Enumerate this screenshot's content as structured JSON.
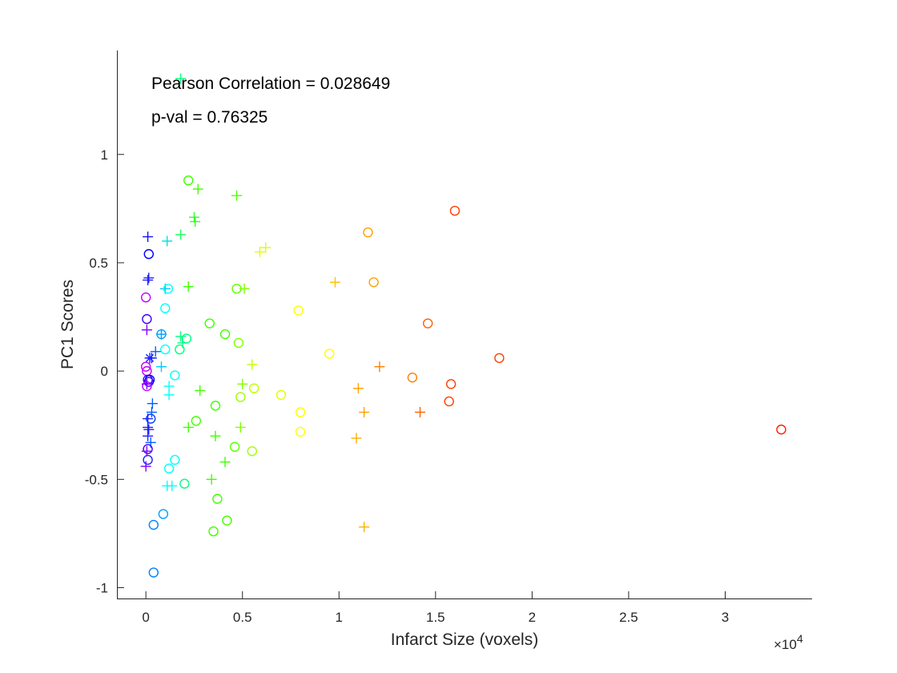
{
  "chart_data": {
    "type": "scatter",
    "xlabel": "Infarct Size (voxels)",
    "ylabel": "PC1 Scores",
    "x_exponent_label": "×10",
    "x_exponent_power": "4",
    "annotations": [
      "Pearson Correlation = 0.028649",
      "p-val = 0.76325"
    ],
    "xlim": [
      -0.15,
      3.45
    ],
    "ylim": [
      -1.05,
      1.48
    ],
    "x_ticks": [
      0,
      0.5,
      1,
      1.5,
      2,
      2.5,
      3
    ],
    "x_tick_labels": [
      "0",
      "0.5",
      "1",
      "1.5",
      "2",
      "2.5",
      "3"
    ],
    "y_ticks": [
      -1,
      -0.5,
      0,
      0.5,
      1
    ],
    "y_tick_labels": [
      "-1",
      "-0.5",
      "0",
      "0.5",
      "1"
    ],
    "grid": false,
    "legend": "none",
    "points": [
      {
        "x": 0.18,
        "y": 1.35,
        "marker": "+",
        "color": "#00ff80"
      },
      {
        "x": 0.22,
        "y": 0.88,
        "marker": "o",
        "color": "#40ff00"
      },
      {
        "x": 0.27,
        "y": 0.84,
        "marker": "+",
        "color": "#40ff00"
      },
      {
        "x": 0.47,
        "y": 0.81,
        "marker": "+",
        "color": "#50ff00"
      },
      {
        "x": 0.25,
        "y": 0.71,
        "marker": "+",
        "color": "#30ff20"
      },
      {
        "x": 0.255,
        "y": 0.69,
        "marker": "+",
        "color": "#30ff20"
      },
      {
        "x": 0.18,
        "y": 0.63,
        "marker": "+",
        "color": "#20ff60"
      },
      {
        "x": 0.11,
        "y": 0.6,
        "marker": "+",
        "color": "#00e0e0"
      },
      {
        "x": 0.01,
        "y": 0.62,
        "marker": "+",
        "color": "#1010ff"
      },
      {
        "x": 0.015,
        "y": 0.54,
        "marker": "o",
        "color": "#0000ff"
      },
      {
        "x": 0.01,
        "y": 0.42,
        "marker": "+",
        "color": "#2020ff"
      },
      {
        "x": 0.015,
        "y": 0.43,
        "marker": "+",
        "color": "#2020ff"
      },
      {
        "x": 0.1,
        "y": 0.38,
        "marker": "+",
        "color": "#00c8ff"
      },
      {
        "x": 0.115,
        "y": 0.38,
        "marker": "o",
        "color": "#00ffff"
      },
      {
        "x": 0.22,
        "y": 0.39,
        "marker": "+",
        "color": "#40ff00"
      },
      {
        "x": 0.47,
        "y": 0.38,
        "marker": "o",
        "color": "#60ff00"
      },
      {
        "x": 0.51,
        "y": 0.38,
        "marker": "+",
        "color": "#80ff00"
      },
      {
        "x": 0.59,
        "y": 0.55,
        "marker": "+",
        "color": "#e0ff00"
      },
      {
        "x": 0.62,
        "y": 0.57,
        "marker": "+",
        "color": "#e0ff00"
      },
      {
        "x": 0.0,
        "y": 0.34,
        "marker": "o",
        "color": "#c000ff"
      },
      {
        "x": 0.005,
        "y": 0.24,
        "marker": "o",
        "color": "#4000ff"
      },
      {
        "x": 0.005,
        "y": 0.19,
        "marker": "+",
        "color": "#8000ff"
      },
      {
        "x": 0.1,
        "y": 0.29,
        "marker": "o",
        "color": "#00ffff"
      },
      {
        "x": 0.08,
        "y": 0.17,
        "marker": "o",
        "color": "#00a0ff"
      },
      {
        "x": 0.08,
        "y": 0.17,
        "marker": "+",
        "color": "#00a0ff"
      },
      {
        "x": 0.18,
        "y": 0.16,
        "marker": "+",
        "color": "#00ff80"
      },
      {
        "x": 0.19,
        "y": 0.13,
        "marker": "+",
        "color": "#00ff80"
      },
      {
        "x": 0.21,
        "y": 0.15,
        "marker": "o",
        "color": "#00ff80"
      },
      {
        "x": 0.175,
        "y": 0.1,
        "marker": "o",
        "color": "#00ff80"
      },
      {
        "x": 0.33,
        "y": 0.22,
        "marker": "o",
        "color": "#40ff00"
      },
      {
        "x": 0.41,
        "y": 0.17,
        "marker": "o",
        "color": "#40ff00"
      },
      {
        "x": 0.48,
        "y": 0.13,
        "marker": "o",
        "color": "#80ff00"
      },
      {
        "x": 0.79,
        "y": 0.28,
        "marker": "o",
        "color": "#ffff00"
      },
      {
        "x": 0.1,
        "y": 0.1,
        "marker": "o",
        "color": "#00ffff"
      },
      {
        "x": 0.03,
        "y": 0.06,
        "marker": "+",
        "color": "#2020ff"
      },
      {
        "x": 0.02,
        "y": 0.06,
        "marker": "*",
        "color": "#2020ff"
      },
      {
        "x": 0.05,
        "y": 0.09,
        "marker": "+",
        "color": "#0060ff"
      },
      {
        "x": 0.08,
        "y": 0.02,
        "marker": "+",
        "color": "#00c8ff"
      },
      {
        "x": 0.15,
        "y": -0.02,
        "marker": "o",
        "color": "#00ffff"
      },
      {
        "x": 0.0,
        "y": 0.02,
        "marker": "o",
        "color": "#c000ff"
      },
      {
        "x": 0.005,
        "y": 0.0,
        "marker": "o",
        "color": "#c000ff"
      },
      {
        "x": 0.01,
        "y": -0.04,
        "marker": "o",
        "color": "#4000ff"
      },
      {
        "x": 0.015,
        "y": -0.05,
        "marker": "o",
        "color": "#4000ff"
      },
      {
        "x": 0.02,
        "y": -0.04,
        "marker": "o",
        "color": "#0000ff"
      },
      {
        "x": 0.005,
        "y": -0.07,
        "marker": "o",
        "color": "#c000ff"
      },
      {
        "x": 0.005,
        "y": -0.06,
        "marker": "+",
        "color": "#8000ff"
      },
      {
        "x": 0.55,
        "y": 0.03,
        "marker": "+",
        "color": "#c0ff00"
      },
      {
        "x": 0.95,
        "y": 0.08,
        "marker": "o",
        "color": "#ffff00"
      },
      {
        "x": 1.21,
        "y": 0.02,
        "marker": "+",
        "color": "#ff8000"
      },
      {
        "x": 1.38,
        "y": -0.03,
        "marker": "o",
        "color": "#ff8000"
      },
      {
        "x": 1.83,
        "y": 0.06,
        "marker": "o",
        "color": "#ff4000"
      },
      {
        "x": 1.58,
        "y": -0.06,
        "marker": "o",
        "color": "#ff4000"
      },
      {
        "x": 1.57,
        "y": -0.14,
        "marker": "o",
        "color": "#ff4000"
      },
      {
        "x": 1.42,
        "y": -0.19,
        "marker": "+",
        "color": "#ff6000"
      },
      {
        "x": 1.1,
        "y": -0.08,
        "marker": "+",
        "color": "#ffa000"
      },
      {
        "x": 1.13,
        "y": -0.19,
        "marker": "+",
        "color": "#ffa000"
      },
      {
        "x": 1.09,
        "y": -0.31,
        "marker": "+",
        "color": "#ffb000"
      },
      {
        "x": 0.12,
        "y": -0.07,
        "marker": "+",
        "color": "#00ffff"
      },
      {
        "x": 0.12,
        "y": -0.11,
        "marker": "+",
        "color": "#00ffff"
      },
      {
        "x": 0.28,
        "y": -0.09,
        "marker": "+",
        "color": "#40ff00"
      },
      {
        "x": 0.5,
        "y": -0.06,
        "marker": "+",
        "color": "#80ff00"
      },
      {
        "x": 0.49,
        "y": -0.12,
        "marker": "o",
        "color": "#a0ff00"
      },
      {
        "x": 0.56,
        "y": -0.08,
        "marker": "o",
        "color": "#c0ff00"
      },
      {
        "x": 0.7,
        "y": -0.11,
        "marker": "o",
        "color": "#e0ff00"
      },
      {
        "x": 0.8,
        "y": -0.19,
        "marker": "o",
        "color": "#ffff00"
      },
      {
        "x": 0.8,
        "y": -0.28,
        "marker": "o",
        "color": "#ffff00"
      },
      {
        "x": 0.36,
        "y": -0.16,
        "marker": "o",
        "color": "#40ff00"
      },
      {
        "x": 0.26,
        "y": -0.23,
        "marker": "o",
        "color": "#40ff00"
      },
      {
        "x": 0.22,
        "y": -0.26,
        "marker": "+",
        "color": "#40ff00"
      },
      {
        "x": 0.36,
        "y": -0.3,
        "marker": "+",
        "color": "#40ff00"
      },
      {
        "x": 0.49,
        "y": -0.26,
        "marker": "+",
        "color": "#80ff00"
      },
      {
        "x": 0.46,
        "y": -0.35,
        "marker": "o",
        "color": "#60ff00"
      },
      {
        "x": 0.55,
        "y": -0.37,
        "marker": "o",
        "color": "#a0ff00"
      },
      {
        "x": 0.41,
        "y": -0.42,
        "marker": "+",
        "color": "#40ff00"
      },
      {
        "x": 0.034,
        "y": -0.15,
        "marker": "+",
        "color": "#0060ff"
      },
      {
        "x": 0.03,
        "y": -0.19,
        "marker": "+",
        "color": "#0060ff"
      },
      {
        "x": 0.025,
        "y": -0.22,
        "marker": "o",
        "color": "#0040ff"
      },
      {
        "x": 0.01,
        "y": -0.22,
        "marker": "+",
        "color": "#2020ff"
      },
      {
        "x": 0.01,
        "y": -0.26,
        "marker": "+",
        "color": "#2020ff"
      },
      {
        "x": 0.015,
        "y": -0.27,
        "marker": "+",
        "color": "#2020ff"
      },
      {
        "x": 0.01,
        "y": -0.3,
        "marker": "+",
        "color": "#2020ff"
      },
      {
        "x": 0.025,
        "y": -0.33,
        "marker": "+",
        "color": "#0060ff"
      },
      {
        "x": 0.01,
        "y": -0.36,
        "marker": "o",
        "color": "#4000ff"
      },
      {
        "x": 0.005,
        "y": -0.37,
        "marker": "+",
        "color": "#8000ff"
      },
      {
        "x": 0.01,
        "y": -0.41,
        "marker": "o",
        "color": "#2020ff"
      },
      {
        "x": 0.0,
        "y": -0.44,
        "marker": "+",
        "color": "#8000ff"
      },
      {
        "x": 0.15,
        "y": -0.41,
        "marker": "o",
        "color": "#00ffff"
      },
      {
        "x": 0.12,
        "y": -0.45,
        "marker": "o",
        "color": "#00ffff"
      },
      {
        "x": 0.11,
        "y": -0.53,
        "marker": "+",
        "color": "#00ffff"
      },
      {
        "x": 0.135,
        "y": -0.53,
        "marker": "+",
        "color": "#00ffff"
      },
      {
        "x": 0.2,
        "y": -0.52,
        "marker": "o",
        "color": "#00ff80"
      },
      {
        "x": 0.34,
        "y": -0.5,
        "marker": "+",
        "color": "#40ff00"
      },
      {
        "x": 0.37,
        "y": -0.59,
        "marker": "o",
        "color": "#40ff00"
      },
      {
        "x": 0.42,
        "y": -0.69,
        "marker": "o",
        "color": "#40ff00"
      },
      {
        "x": 0.35,
        "y": -0.74,
        "marker": "o",
        "color": "#40ff00"
      },
      {
        "x": 0.09,
        "y": -0.66,
        "marker": "o",
        "color": "#00a0ff"
      },
      {
        "x": 0.04,
        "y": -0.71,
        "marker": "o",
        "color": "#0080ff"
      },
      {
        "x": 0.04,
        "y": -0.93,
        "marker": "o",
        "color": "#0080ff"
      },
      {
        "x": 1.13,
        "y": -0.72,
        "marker": "+",
        "color": "#ffb000"
      },
      {
        "x": 1.15,
        "y": 0.64,
        "marker": "o",
        "color": "#ffa000"
      },
      {
        "x": 1.18,
        "y": 0.41,
        "marker": "o",
        "color": "#ffa000"
      },
      {
        "x": 0.98,
        "y": 0.41,
        "marker": "+",
        "color": "#ffc000"
      },
      {
        "x": 1.46,
        "y": 0.22,
        "marker": "o",
        "color": "#ff6000"
      },
      {
        "x": 1.6,
        "y": 0.74,
        "marker": "o",
        "color": "#ff4000"
      },
      {
        "x": 3.29,
        "y": -0.27,
        "marker": "o",
        "color": "#ff2000"
      }
    ]
  }
}
